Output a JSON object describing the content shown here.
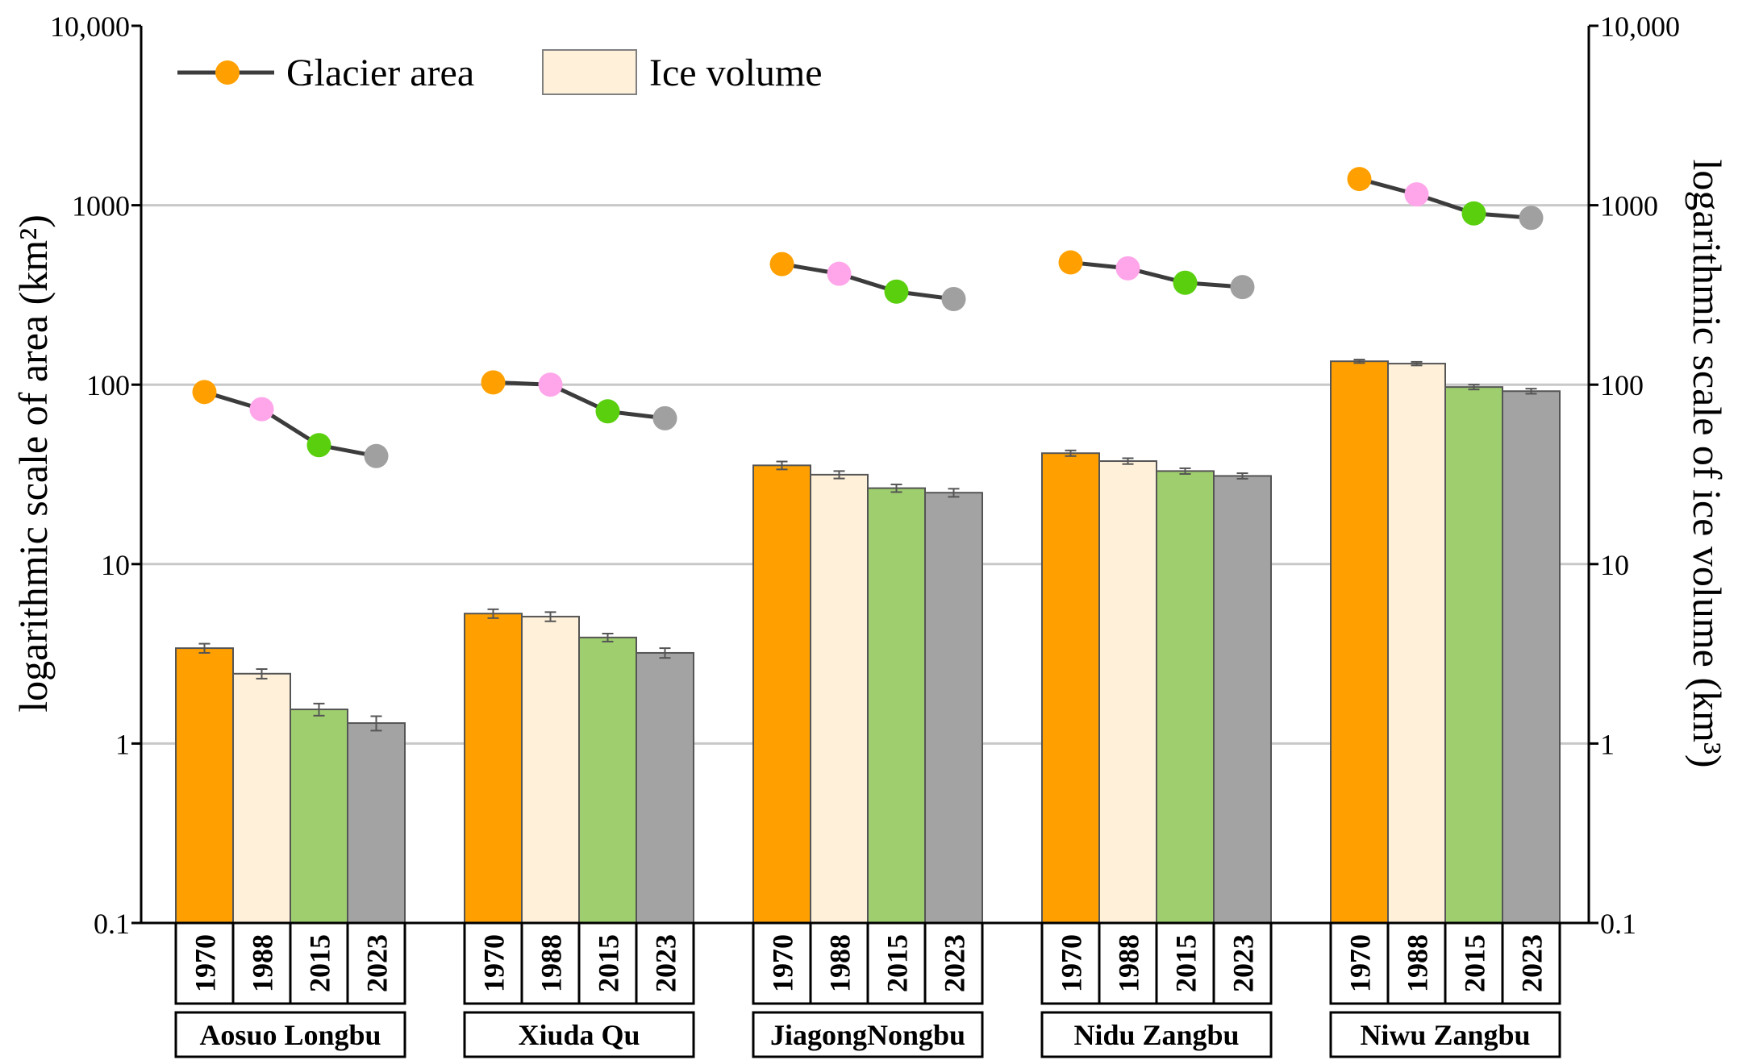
{
  "chart_data": {
    "type": "bar",
    "title": "",
    "ylabel_left": "logarithmic scale of area (km²)",
    "ylabel_right": "logarithmic scale of ice volume (km³)",
    "yscale": "log",
    "ylim": [
      0.1,
      10000
    ],
    "y_ticks": [
      0.1,
      1,
      10,
      100,
      1000,
      10000
    ],
    "y_tick_labels": [
      "0.1",
      "1",
      "10",
      "100",
      "1000",
      "10,000"
    ],
    "grid": true,
    "legend": {
      "position": "top-left",
      "items": [
        {
          "label": "Glacier area",
          "kind": "line-marker"
        },
        {
          "label": "Ice volume",
          "kind": "bar"
        }
      ]
    },
    "years": [
      "1970",
      "1988",
      "2015",
      "2023"
    ],
    "year_colors": {
      "bar": [
        "#FFA000",
        "#FFF0D9",
        "#9ECE6E",
        "#A3A3A3"
      ],
      "marker": [
        "#FFA000",
        "#FFA6EA",
        "#59CF0E",
        "#A0A0A0"
      ]
    },
    "line_color": "#3C3C3C",
    "groups": [
      {
        "name": "Aosuo Longbu",
        "ice_volume": [
          3.4,
          2.45,
          1.55,
          1.3
        ],
        "ice_volume_err": [
          0.2,
          0.15,
          0.12,
          0.12
        ],
        "glacier_area": [
          91,
          73,
          46,
          40
        ]
      },
      {
        "name": "Xiuda Qu",
        "ice_volume": [
          5.3,
          5.1,
          3.9,
          3.2
        ],
        "ice_volume_err": [
          0.3,
          0.3,
          0.2,
          0.2
        ],
        "glacier_area": [
          103,
          100,
          71,
          65
        ]
      },
      {
        "name": "JiagongNongbu",
        "ice_volume": [
          35.5,
          31.5,
          26.5,
          25
        ],
        "ice_volume_err": [
          1.8,
          1.5,
          1.3,
          1.3
        ],
        "glacier_area": [
          470,
          415,
          330,
          300
        ]
      },
      {
        "name": "Nidu Zangbu",
        "ice_volume": [
          41.5,
          37.5,
          33,
          31
        ],
        "ice_volume_err": [
          1.5,
          1.4,
          1.2,
          1.1
        ],
        "glacier_area": [
          480,
          445,
          370,
          350
        ]
      },
      {
        "name": "Niwu Zangbu",
        "ice_volume": [
          135,
          131,
          97,
          92
        ],
        "ice_volume_err": [
          3,
          3,
          3,
          3
        ],
        "glacier_area": [
          1400,
          1150,
          900,
          850
        ]
      }
    ]
  }
}
